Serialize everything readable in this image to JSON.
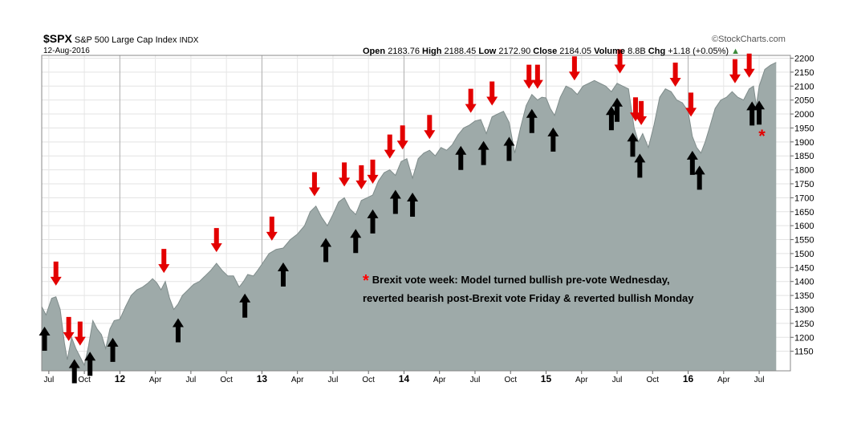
{
  "header": {
    "symbol": "$SPX",
    "name": "S&P 500 Large Cap Index",
    "exchange": "INDX",
    "date": "12-Aug-2016",
    "watermark": "©StockCharts.com",
    "open_label": "Open",
    "open_value": "2183.76",
    "high_label": "High",
    "high_value": "2188.45",
    "low_label": "Low",
    "low_value": "2172.90",
    "close_label": "Close",
    "close_value": "2184.05",
    "volume_label": "Volume",
    "volume_value": "8.8B",
    "chg_label": "Chg",
    "chg_value": "+1.18 (+0.05%)"
  },
  "annotation": {
    "star": "*",
    "line1": "Brexit vote week: Model turned bullish pre-vote Wednesday,",
    "line2": "reverted bearish post-Brexit vote Friday & reverted bullish Monday"
  },
  "chart_data": {
    "type": "area",
    "title": "",
    "xlabel": "",
    "ylabel": "",
    "ylim": [
      1080,
      2210
    ],
    "xlim": [
      2011.45,
      2016.72
    ],
    "y_ticks": [
      1150,
      1200,
      1250,
      1300,
      1350,
      1400,
      1450,
      1500,
      1550,
      1600,
      1650,
      1700,
      1750,
      1800,
      1850,
      1900,
      1950,
      2000,
      2050,
      2100,
      2150,
      2200
    ],
    "x_ticks": [
      {
        "label": "Jul",
        "x": 2011.5
      },
      {
        "label": "Oct",
        "x": 2011.75
      },
      {
        "label": "12",
        "x": 2012.0
      },
      {
        "label": "Apr",
        "x": 2012.25
      },
      {
        "label": "Jul",
        "x": 2012.5
      },
      {
        "label": "Oct",
        "x": 2012.75
      },
      {
        "label": "13",
        "x": 2013.0
      },
      {
        "label": "Apr",
        "x": 2013.25
      },
      {
        "label": "Jul",
        "x": 2013.5
      },
      {
        "label": "Oct",
        "x": 2013.75
      },
      {
        "label": "14",
        "x": 2014.0
      },
      {
        "label": "Apr",
        "x": 2014.25
      },
      {
        "label": "Jul",
        "x": 2014.5
      },
      {
        "label": "Oct",
        "x": 2014.75
      },
      {
        "label": "15",
        "x": 2015.0
      },
      {
        "label": "Apr",
        "x": 2015.25
      },
      {
        "label": "Jul",
        "x": 2015.5
      },
      {
        "label": "Oct",
        "x": 2015.75
      },
      {
        "label": "16",
        "x": 2016.0
      },
      {
        "label": "Apr",
        "x": 2016.25
      },
      {
        "label": "Jul",
        "x": 2016.5
      }
    ],
    "year_lines": [
      2012.0,
      2013.0,
      2014.0,
      2015.0,
      2016.0
    ],
    "grid": true,
    "series": [
      {
        "points": [
          [
            2011.45,
            1310
          ],
          [
            2011.48,
            1280
          ],
          [
            2011.52,
            1340
          ],
          [
            2011.55,
            1345
          ],
          [
            2011.58,
            1300
          ],
          [
            2011.61,
            1180
          ],
          [
            2011.63,
            1120
          ],
          [
            2011.66,
            1200
          ],
          [
            2011.69,
            1160
          ],
          [
            2011.72,
            1130
          ],
          [
            2011.75,
            1100
          ],
          [
            2011.78,
            1170
          ],
          [
            2011.81,
            1260
          ],
          [
            2011.84,
            1230
          ],
          [
            2011.87,
            1210
          ],
          [
            2011.9,
            1160
          ],
          [
            2011.93,
            1230
          ],
          [
            2011.96,
            1260
          ],
          [
            2012.0,
            1265
          ],
          [
            2012.04,
            1310
          ],
          [
            2012.08,
            1350
          ],
          [
            2012.12,
            1370
          ],
          [
            2012.16,
            1380
          ],
          [
            2012.2,
            1395
          ],
          [
            2012.23,
            1410
          ],
          [
            2012.26,
            1395
          ],
          [
            2012.29,
            1370
          ],
          [
            2012.32,
            1400
          ],
          [
            2012.35,
            1340
          ],
          [
            2012.38,
            1300
          ],
          [
            2012.41,
            1320
          ],
          [
            2012.44,
            1350
          ],
          [
            2012.48,
            1370
          ],
          [
            2012.52,
            1390
          ],
          [
            2012.56,
            1400
          ],
          [
            2012.6,
            1420
          ],
          [
            2012.64,
            1440
          ],
          [
            2012.68,
            1465
          ],
          [
            2012.72,
            1440
          ],
          [
            2012.76,
            1420
          ],
          [
            2012.8,
            1420
          ],
          [
            2012.84,
            1380
          ],
          [
            2012.87,
            1400
          ],
          [
            2012.9,
            1425
          ],
          [
            2012.94,
            1420
          ],
          [
            2012.97,
            1440
          ],
          [
            2013.0,
            1462
          ],
          [
            2013.05,
            1500
          ],
          [
            2013.1,
            1515
          ],
          [
            2013.15,
            1520
          ],
          [
            2013.2,
            1550
          ],
          [
            2013.25,
            1570
          ],
          [
            2013.3,
            1600
          ],
          [
            2013.34,
            1650
          ],
          [
            2013.38,
            1670
          ],
          [
            2013.42,
            1630
          ],
          [
            2013.46,
            1600
          ],
          [
            2013.5,
            1640
          ],
          [
            2013.54,
            1685
          ],
          [
            2013.58,
            1700
          ],
          [
            2013.62,
            1660
          ],
          [
            2013.66,
            1640
          ],
          [
            2013.7,
            1690
          ],
          [
            2013.74,
            1700
          ],
          [
            2013.78,
            1710
          ],
          [
            2013.82,
            1760
          ],
          [
            2013.86,
            1790
          ],
          [
            2013.9,
            1800
          ],
          [
            2013.94,
            1780
          ],
          [
            2013.98,
            1830
          ],
          [
            2014.02,
            1840
          ],
          [
            2014.06,
            1770
          ],
          [
            2014.1,
            1840
          ],
          [
            2014.14,
            1860
          ],
          [
            2014.18,
            1870
          ],
          [
            2014.22,
            1850
          ],
          [
            2014.26,
            1880
          ],
          [
            2014.3,
            1870
          ],
          [
            2014.34,
            1890
          ],
          [
            2014.38,
            1925
          ],
          [
            2014.42,
            1950
          ],
          [
            2014.46,
            1960
          ],
          [
            2014.5,
            1975
          ],
          [
            2014.54,
            1980
          ],
          [
            2014.58,
            1930
          ],
          [
            2014.62,
            1990
          ],
          [
            2014.66,
            2000
          ],
          [
            2014.7,
            2010
          ],
          [
            2014.74,
            1970
          ],
          [
            2014.78,
            1860
          ],
          [
            2014.82,
            1950
          ],
          [
            2014.86,
            2030
          ],
          [
            2014.9,
            2070
          ],
          [
            2014.94,
            2050
          ],
          [
            2014.97,
            2060
          ],
          [
            2015.0,
            2058
          ],
          [
            2015.03,
            2020
          ],
          [
            2015.06,
            1995
          ],
          [
            2015.1,
            2060
          ],
          [
            2015.14,
            2100
          ],
          [
            2015.18,
            2090
          ],
          [
            2015.22,
            2070
          ],
          [
            2015.26,
            2100
          ],
          [
            2015.3,
            2110
          ],
          [
            2015.34,
            2120
          ],
          [
            2015.38,
            2110
          ],
          [
            2015.42,
            2100
          ],
          [
            2015.46,
            2080
          ],
          [
            2015.5,
            2110
          ],
          [
            2015.54,
            2100
          ],
          [
            2015.58,
            2090
          ],
          [
            2015.62,
            1950
          ],
          [
            2015.65,
            1900
          ],
          [
            2015.68,
            1930
          ],
          [
            2015.72,
            1880
          ],
          [
            2015.76,
            1960
          ],
          [
            2015.8,
            2060
          ],
          [
            2015.84,
            2090
          ],
          [
            2015.88,
            2080
          ],
          [
            2015.92,
            2050
          ],
          [
            2015.96,
            2040
          ],
          [
            2016.0,
            2010
          ],
          [
            2016.03,
            1920
          ],
          [
            2016.06,
            1880
          ],
          [
            2016.09,
            1860
          ],
          [
            2016.12,
            1900
          ],
          [
            2016.15,
            1950
          ],
          [
            2016.19,
            2020
          ],
          [
            2016.23,
            2050
          ],
          [
            2016.27,
            2060
          ],
          [
            2016.31,
            2080
          ],
          [
            2016.35,
            2060
          ],
          [
            2016.39,
            2050
          ],
          [
            2016.43,
            2090
          ],
          [
            2016.46,
            2100
          ],
          [
            2016.48,
            2030
          ],
          [
            2016.5,
            2100
          ],
          [
            2016.54,
            2160
          ],
          [
            2016.58,
            2175
          ],
          [
            2016.62,
            2185
          ]
        ]
      }
    ],
    "sell_signals": [
      2011.55,
      2011.64,
      2011.72,
      2012.31,
      2012.68,
      2013.07,
      2013.37,
      2013.58,
      2013.7,
      2013.78,
      2013.9,
      2013.99,
      2014.18,
      2014.47,
      2014.62,
      2014.88,
      2014.94,
      2015.2,
      2015.52,
      2015.63,
      2015.67,
      2015.91,
      2016.02,
      2016.33,
      2016.43
    ],
    "buy_signals": [
      2011.47,
      2011.68,
      2011.79,
      2011.95,
      2012.41,
      2012.88,
      2013.15,
      2013.45,
      2013.66,
      2013.78,
      2013.94,
      2014.06,
      2014.4,
      2014.56,
      2014.74,
      2014.9,
      2015.05,
      2015.46,
      2015.5,
      2015.61,
      2015.66,
      2016.03,
      2016.08,
      2016.45,
      2016.5
    ],
    "star_signal": 2016.52
  }
}
